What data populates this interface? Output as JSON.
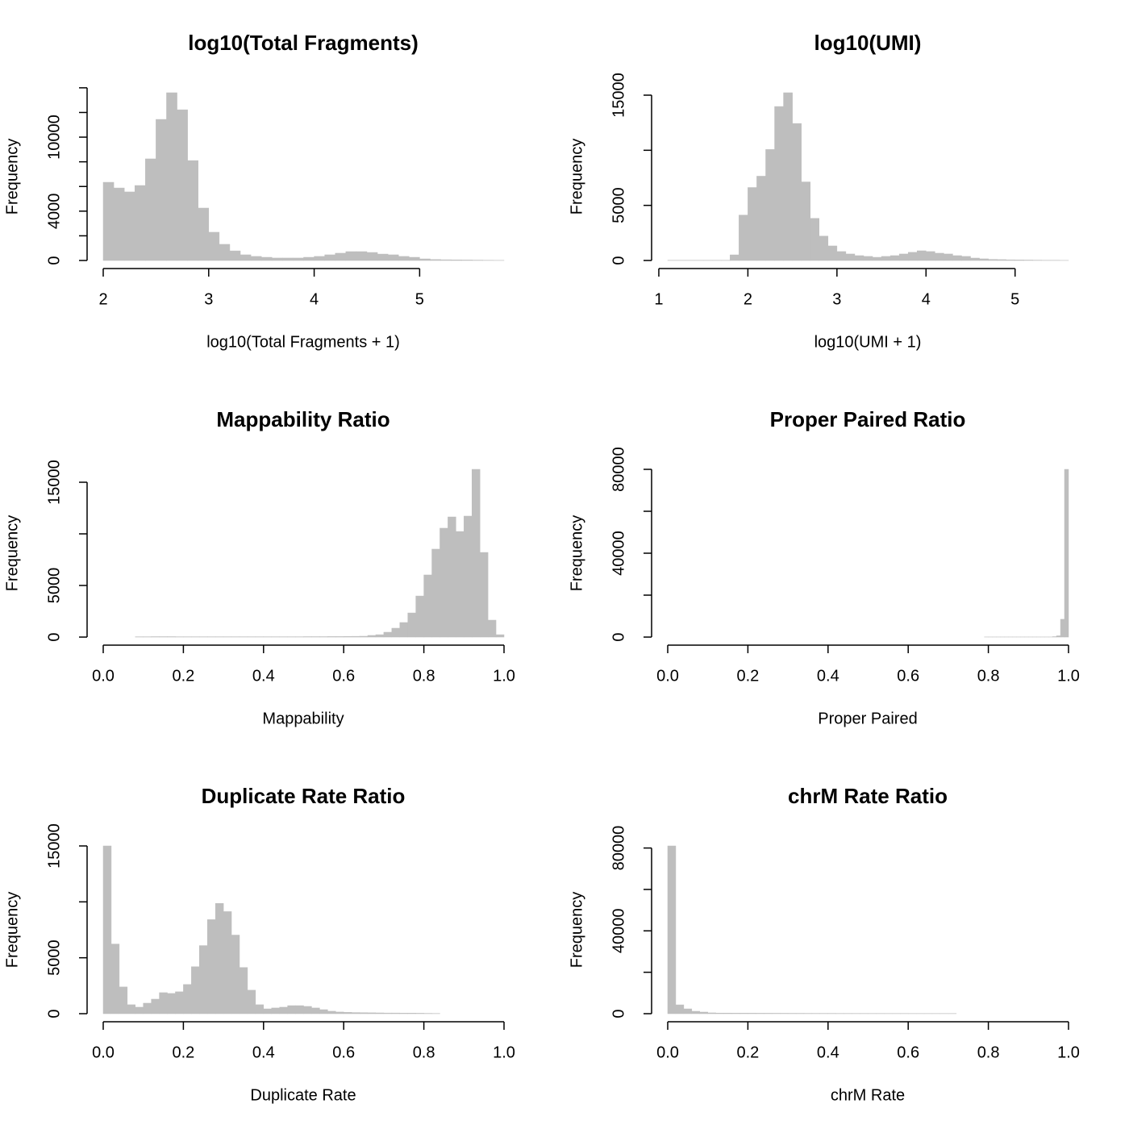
{
  "chart_data": [
    {
      "type": "histogram",
      "title": "log10(Total Fragments)",
      "xlabel": "log10(Total Fragments + 1)",
      "ylabel": "Frequency",
      "color": "#bebebe",
      "bins": [
        2,
        2.1,
        2.2,
        2.3,
        2.4,
        2.5,
        2.6,
        2.7,
        2.8,
        2.9,
        3,
        3.1,
        3.2,
        3.3,
        3.4,
        3.5,
        3.6,
        3.7,
        3.8,
        3.9,
        4,
        4.1,
        4.2,
        4.3,
        4.4,
        4.5,
        4.6,
        4.7,
        4.8,
        4.9,
        5,
        5.1,
        5.2,
        5.3,
        5.4,
        5.5,
        5.6,
        5.7,
        5.8
      ],
      "counts": [
        6340,
        5880,
        5560,
        6080,
        8240,
        11440,
        13600,
        12220,
        8100,
        4250,
        2290,
        1310,
        780,
        460,
        330,
        260,
        200,
        200,
        200,
        260,
        330,
        460,
        590,
        720,
        720,
        650,
        520,
        460,
        330,
        260,
        130,
        80,
        60,
        50,
        40,
        30,
        20,
        10
      ],
      "xlim": [
        2,
        5.8
      ],
      "xticks": [
        2,
        3,
        4,
        5
      ],
      "ylim": [
        0,
        13600
      ],
      "yticks": [
        0,
        4000,
        10000
      ],
      "yminor": [
        2000,
        6000,
        8000,
        12000,
        14000
      ]
    },
    {
      "type": "histogram",
      "title": "log10(UMI)",
      "xlabel": "log10(UMI + 1)",
      "ylabel": "Frequency",
      "color": "#bebebe",
      "bins": [
        1.1,
        1.2,
        1.3,
        1.4,
        1.5,
        1.6,
        1.7,
        1.8,
        1.9,
        2,
        2.1,
        2.2,
        2.3,
        2.4,
        2.5,
        2.6,
        2.7,
        2.8,
        2.9,
        3,
        3.1,
        3.2,
        3.3,
        3.4,
        3.5,
        3.6,
        3.7,
        3.8,
        3.9,
        4,
        4.1,
        4.2,
        4.3,
        4.4,
        4.5,
        4.6,
        4.7,
        4.8,
        4.9,
        5,
        5.1,
        5.2,
        5.3,
        5.4,
        5.5,
        5.6
      ],
      "counts": [
        20,
        20,
        20,
        20,
        20,
        20,
        20,
        510,
        4120,
        6620,
        7650,
        10070,
        13970,
        15220,
        12430,
        7130,
        3820,
        2210,
        1320,
        810,
        590,
        440,
        370,
        290,
        370,
        440,
        590,
        740,
        880,
        810,
        660,
        590,
        440,
        370,
        220,
        150,
        100,
        80,
        60,
        50,
        40,
        30,
        20,
        20,
        10
      ],
      "xlim": [
        1.1,
        5.6
      ],
      "xticks": [
        1,
        2,
        3,
        4,
        5
      ],
      "ylim": [
        0,
        15220
      ],
      "yticks": [
        0,
        5000,
        15000
      ],
      "yminor": [
        10000
      ]
    },
    {
      "type": "histogram",
      "title": "Mappability Ratio",
      "xlabel": "Mappability",
      "ylabel": "Frequency",
      "color": "#bebebe",
      "bins": [
        0.08,
        0.1,
        0.12,
        0.14,
        0.16,
        0.18,
        0.2,
        0.22,
        0.24,
        0.26,
        0.28,
        0.3,
        0.32,
        0.34,
        0.36,
        0.38,
        0.4,
        0.42,
        0.44,
        0.46,
        0.48,
        0.5,
        0.52,
        0.54,
        0.56,
        0.58,
        0.6,
        0.62,
        0.64,
        0.66,
        0.68,
        0.7,
        0.72,
        0.74,
        0.76,
        0.78,
        0.8,
        0.82,
        0.84,
        0.86,
        0.88,
        0.9,
        0.92,
        0.94,
        0.96,
        0.98,
        1
      ],
      "counts": [
        30,
        30,
        40,
        40,
        40,
        30,
        30,
        30,
        30,
        30,
        30,
        30,
        30,
        30,
        30,
        30,
        30,
        30,
        30,
        30,
        30,
        40,
        40,
        40,
        50,
        50,
        60,
        70,
        80,
        160,
        230,
        470,
        860,
        1410,
        2340,
        3980,
        6020,
        8520,
        10550,
        11640,
        10230,
        11720,
        16250,
        8200,
        1640,
        230
      ],
      "xlim": [
        0,
        1
      ],
      "xticks": [
        {
          "value": 0,
          "label": "0.0"
        },
        0.2,
        0.4,
        0.6,
        0.8,
        {
          "value": 1,
          "label": "1.0"
        }
      ],
      "ylim": [
        0,
        16250
      ],
      "yticks": [
        0,
        5000,
        15000
      ],
      "yminor": [
        10000
      ]
    },
    {
      "type": "histogram",
      "title": "Proper Paired Ratio",
      "xlabel": "Proper Paired",
      "ylabel": "Frequency",
      "color": "#bebebe",
      "bins": [
        0.79,
        0.8,
        0.81,
        0.82,
        0.83,
        0.84,
        0.85,
        0.86,
        0.87,
        0.88,
        0.89,
        0.9,
        0.91,
        0.92,
        0.93,
        0.94,
        0.95,
        0.96,
        0.97,
        0.98,
        0.99,
        1
      ],
      "counts": [
        50,
        50,
        50,
        50,
        50,
        50,
        50,
        50,
        50,
        50,
        50,
        50,
        50,
        50,
        50,
        50,
        50,
        200,
        600,
        8500,
        80000
      ],
      "xlim": [
        0,
        1
      ],
      "xticks": [
        {
          "value": 0,
          "label": "0.0"
        },
        0.2,
        0.4,
        0.6,
        0.8,
        {
          "value": 1,
          "label": "1.0"
        }
      ],
      "ylim": [
        0,
        80000
      ],
      "yticks": [
        0,
        40000,
        80000
      ],
      "yminor": [
        20000,
        60000
      ]
    },
    {
      "type": "histogram",
      "title": "Duplicate Rate Ratio",
      "xlabel": "Duplicate Rate",
      "ylabel": "Frequency",
      "color": "#bebebe",
      "bins": [
        0,
        0.02,
        0.04,
        0.06,
        0.08,
        0.1,
        0.12,
        0.14,
        0.16,
        0.18,
        0.2,
        0.22,
        0.24,
        0.26,
        0.28,
        0.3,
        0.32,
        0.34,
        0.36,
        0.38,
        0.4,
        0.42,
        0.44,
        0.46,
        0.48,
        0.5,
        0.52,
        0.54,
        0.56,
        0.58,
        0.6,
        0.62,
        0.64,
        0.66,
        0.68,
        0.7,
        0.72,
        0.74,
        0.76,
        0.78,
        0.8,
        0.82,
        0.84
      ],
      "counts": [
        15000,
        6230,
        2390,
        800,
        580,
        940,
        1300,
        1880,
        1810,
        1960,
        2610,
        4200,
        6090,
        8410,
        9860,
        9130,
        7030,
        4130,
        2100,
        800,
        430,
        510,
        580,
        720,
        720,
        650,
        510,
        360,
        220,
        150,
        120,
        100,
        90,
        80,
        70,
        60,
        60,
        50,
        50,
        40,
        30,
        20
      ],
      "xlim": [
        0,
        1
      ],
      "xticks": [
        {
          "value": 0,
          "label": "0.0"
        },
        0.2,
        0.4,
        0.6,
        0.8,
        {
          "value": 1,
          "label": "1.0"
        }
      ],
      "ylim": [
        0,
        15000
      ],
      "yticks": [
        0,
        5000,
        15000
      ],
      "yminor": [
        10000
      ]
    },
    {
      "type": "histogram",
      "title": "chrM Rate Ratio",
      "xlabel": "chrM Rate",
      "ylabel": "Frequency",
      "color": "#bebebe",
      "bins": [
        0,
        0.02,
        0.04,
        0.06,
        0.08,
        0.1,
        0.12,
        0.14,
        0.16,
        0.18,
        0.2,
        0.22,
        0.24,
        0.26,
        0.28,
        0.3,
        0.32,
        0.34,
        0.36,
        0.38,
        0.4,
        0.42,
        0.44,
        0.46,
        0.48,
        0.5,
        0.52,
        0.54,
        0.56,
        0.58,
        0.6,
        0.62,
        0.64,
        0.66,
        0.68,
        0.7,
        0.72
      ],
      "counts": [
        81000,
        4270,
        2330,
        1170,
        780,
        400,
        300,
        280,
        260,
        250,
        240,
        230,
        220,
        210,
        200,
        190,
        180,
        170,
        160,
        150,
        150,
        140,
        140,
        130,
        130,
        120,
        120,
        110,
        110,
        110,
        100,
        100,
        100,
        100,
        100,
        100
      ],
      "xlim": [
        0,
        1
      ],
      "xticks": [
        {
          "value": 0,
          "label": "0.0"
        },
        0.2,
        0.4,
        0.6,
        0.8,
        {
          "value": 1,
          "label": "1.0"
        }
      ],
      "ylim": [
        0,
        81000
      ],
      "yticks": [
        0,
        40000,
        80000
      ],
      "yminor": [
        20000,
        60000
      ]
    }
  ]
}
